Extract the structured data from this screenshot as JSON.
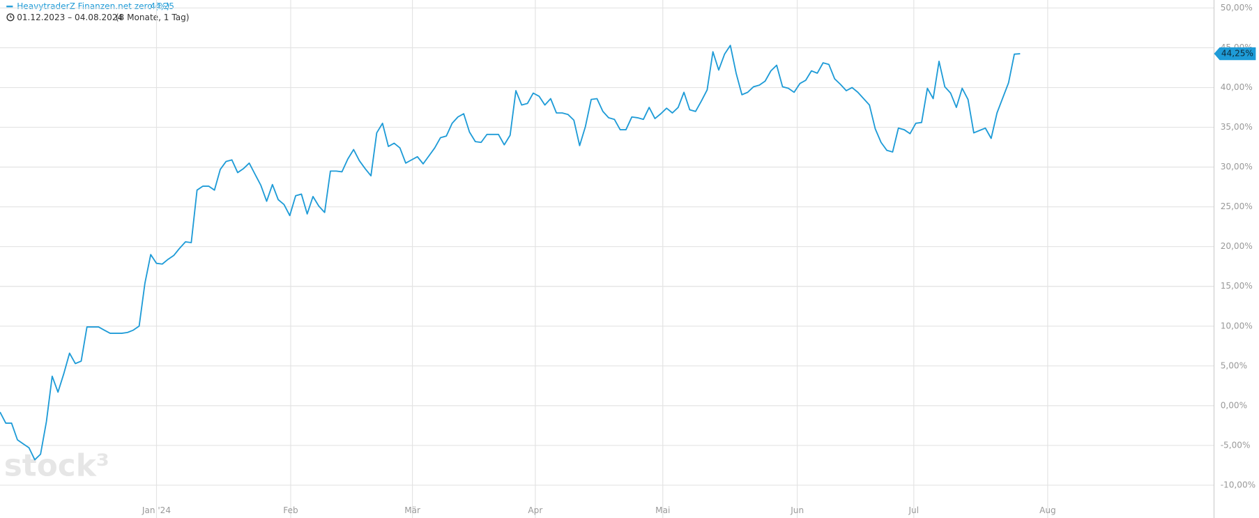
{
  "chart_data": {
    "type": "line",
    "legend_name": "HeavytraderZ Finanzen.net zero (%)",
    "legend_value": "44,25",
    "date_range": "01.12.2023 – 04.08.2024",
    "period": "(8 Monate, 1 Tag)",
    "watermark": "stock³",
    "grid": true,
    "series": [
      {
        "name": "HeavytraderZ Finanzen.net zero (%)",
        "color": "#1e9bd7",
        "values": [
          -0.8,
          -2.2,
          -2.2,
          -4.3,
          -4.8,
          -5.3,
          -6.8,
          -6.1,
          -2.0,
          3.7,
          1.7,
          4.0,
          6.6,
          5.3,
          5.6,
          9.9,
          9.9,
          9.9,
          9.5,
          9.1,
          9.1,
          9.1,
          9.2,
          9.5,
          10.0,
          15.4,
          19.0,
          17.9,
          17.8,
          18.4,
          18.9,
          19.8,
          20.6,
          20.5,
          27.1,
          27.6,
          27.6,
          27.1,
          29.7,
          30.7,
          30.9,
          29.3,
          29.8,
          30.5,
          29.1,
          27.7,
          25.7,
          27.8,
          25.9,
          25.3,
          23.9,
          26.4,
          26.6,
          24.1,
          26.3,
          25.1,
          24.3,
          29.5,
          29.5,
          29.4,
          31.0,
          32.2,
          30.8,
          29.8,
          28.9,
          34.3,
          35.5,
          32.6,
          33.0,
          32.4,
          30.5,
          30.9,
          31.3,
          30.4,
          31.4,
          32.4,
          33.7,
          33.9,
          35.5,
          36.3,
          36.7,
          34.4,
          33.2,
          33.1,
          34.1,
          34.1,
          34.1,
          32.8,
          34.0,
          39.6,
          37.8,
          38.0,
          39.3,
          38.9,
          37.8,
          38.6,
          36.8,
          36.8,
          36.6,
          35.9,
          32.7,
          35.1,
          38.5,
          38.6,
          37.0,
          36.2,
          36.0,
          34.7,
          34.7,
          36.3,
          36.2,
          36.0,
          37.5,
          36.1,
          36.7,
          37.4,
          36.8,
          37.5,
          39.4,
          37.2,
          37.0,
          38.3,
          39.7,
          44.5,
          42.2,
          44.2,
          45.3,
          41.8,
          39.1,
          39.4,
          40.1,
          40.3,
          40.8,
          42.1,
          42.8,
          40.1,
          39.9,
          39.4,
          40.5,
          40.9,
          42.1,
          41.8,
          43.1,
          42.9,
          41.1,
          40.4,
          39.6,
          40.0,
          39.4,
          38.6,
          37.8,
          34.8,
          33.1,
          32.1,
          31.9,
          34.9,
          34.7,
          34.2,
          35.5,
          35.6,
          39.9,
          38.6,
          43.3,
          40.1,
          39.3,
          37.5,
          39.9,
          38.5,
          34.3,
          34.6,
          34.9,
          33.6,
          36.8,
          38.7,
          40.6,
          44.2,
          44.25
        ]
      }
    ],
    "last_label": {
      "value": 44.25,
      "label": "44,25%"
    },
    "xlim": [
      -5.95,
      203.5
    ],
    "xticks": [
      {
        "value": 21.05,
        "label": "Jan '24"
      },
      {
        "value": 44.2,
        "label": "Feb"
      },
      {
        "value": 65.2,
        "label": "Mär"
      },
      {
        "value": 86.4,
        "label": "Apr"
      },
      {
        "value": 108.4,
        "label": "Mai"
      },
      {
        "value": 131.6,
        "label": "Jun"
      },
      {
        "value": 151.7,
        "label": "Jul"
      },
      {
        "value": 174.8,
        "label": "Aug"
      }
    ],
    "ylim": [
      -12.1,
      51.0
    ],
    "yticks": [
      {
        "value": -10,
        "label": "-10,00%"
      },
      {
        "value": -5,
        "label": "-5,00%"
      },
      {
        "value": 0,
        "label": "0,00%"
      },
      {
        "value": 5,
        "label": "5,00%"
      },
      {
        "value": 10,
        "label": "10,00%"
      },
      {
        "value": 15,
        "label": "15,00%"
      },
      {
        "value": 20,
        "label": "20,00%"
      },
      {
        "value": 25,
        "label": "25,00%"
      },
      {
        "value": 30,
        "label": "30,00%"
      },
      {
        "value": 35,
        "label": "35,00%"
      },
      {
        "value": 40,
        "label": "40,00%"
      },
      {
        "value": 45,
        "label": "45,00%"
      },
      {
        "value": 50,
        "label": "50,00%"
      }
    ]
  }
}
